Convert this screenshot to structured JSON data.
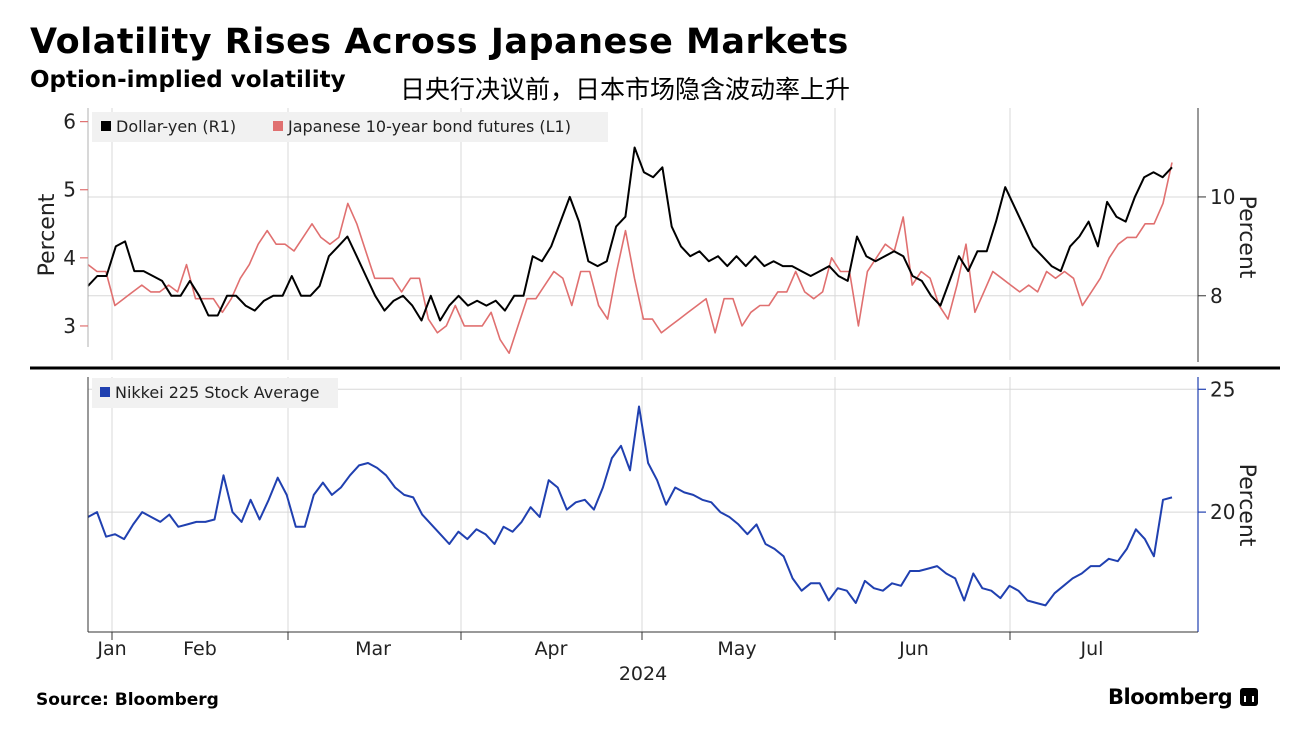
{
  "header": {
    "title": "Volatility Rises Across Japanese Markets",
    "subtitle": "Option-implied volatility",
    "subtitle_cn": "日央行决议前，日本市场隐含波动率上升"
  },
  "footer": {
    "source": "Source: Bloomberg",
    "brand": "Bloomberg"
  },
  "colors": {
    "dollar_yen": "#000000",
    "jgb": "#e07070",
    "nikkei": "#2040b0",
    "grid": "#d8d8d8"
  },
  "chart_data": [
    {
      "type": "line",
      "panel": "top",
      "legend_position": "top-left",
      "x": {
        "labels": [
          "Jan",
          "Feb",
          "Mar",
          "Apr",
          "May",
          "Jun",
          "Jul"
        ],
        "year_label": "2024"
      },
      "left_axis": {
        "label": "Percent",
        "ticks": [
          3,
          4,
          5,
          6
        ],
        "range": [
          2.5,
          6.2
        ]
      },
      "right_axis": {
        "label": "Percent",
        "ticks": [
          8,
          10
        ],
        "range": [
          6.7,
          11.8
        ]
      },
      "series": [
        {
          "name": "Dollar-yen (R1)",
          "axis": "right",
          "values": [
            8.2,
            8.4,
            8.4,
            9.0,
            9.1,
            8.5,
            8.5,
            8.4,
            8.3,
            8.0,
            8.0,
            8.3,
            8.0,
            7.6,
            7.6,
            8.0,
            8.0,
            7.8,
            7.7,
            7.9,
            8.0,
            8.0,
            8.4,
            8.0,
            8.0,
            8.2,
            8.8,
            9.0,
            9.2,
            8.8,
            8.4,
            8.0,
            7.7,
            7.9,
            8.0,
            7.8,
            7.5,
            8.0,
            7.5,
            7.8,
            8.0,
            7.8,
            7.9,
            7.8,
            7.9,
            7.7,
            8.0,
            8.0,
            8.8,
            8.7,
            9.0,
            9.5,
            10.0,
            9.5,
            8.7,
            8.6,
            8.7,
            9.4,
            9.6,
            11.0,
            10.5,
            10.4,
            10.6,
            9.4,
            9.0,
            8.8,
            8.9,
            8.7,
            8.8,
            8.6,
            8.8,
            8.6,
            8.8,
            8.6,
            8.7,
            8.6,
            8.6,
            8.5,
            8.4,
            8.5,
            8.6,
            8.4,
            8.3,
            9.2,
            8.8,
            8.7,
            8.8,
            8.9,
            8.8,
            8.4,
            8.3,
            8.0,
            7.8,
            8.3,
            8.8,
            8.5,
            8.9,
            8.9,
            9.5,
            10.2,
            9.8,
            9.4,
            9.0,
            8.8,
            8.6,
            8.5,
            9.0,
            9.2,
            9.5,
            9.0,
            9.9,
            9.6,
            9.5,
            10.0,
            10.4,
            10.5,
            10.4,
            10.6
          ]
        },
        {
          "name": "Japanese 10-year bond futures (L1)",
          "axis": "left",
          "values": [
            3.9,
            3.8,
            3.8,
            3.3,
            3.4,
            3.5,
            3.6,
            3.5,
            3.5,
            3.6,
            3.5,
            3.9,
            3.4,
            3.4,
            3.4,
            3.2,
            3.4,
            3.7,
            3.9,
            4.2,
            4.4,
            4.2,
            4.2,
            4.1,
            4.3,
            4.5,
            4.3,
            4.2,
            4.3,
            4.8,
            4.5,
            4.1,
            3.7,
            3.7,
            3.7,
            3.5,
            3.7,
            3.7,
            3.1,
            2.9,
            3.0,
            3.3,
            3.0,
            3.0,
            3.0,
            3.2,
            2.8,
            2.6,
            3.0,
            3.4,
            3.4,
            3.6,
            3.8,
            3.7,
            3.3,
            3.8,
            3.8,
            3.3,
            3.1,
            3.8,
            4.4,
            3.7,
            3.1,
            3.1,
            2.9,
            3.0,
            3.1,
            3.2,
            3.3,
            3.4,
            2.9,
            3.4,
            3.4,
            3.0,
            3.2,
            3.3,
            3.3,
            3.5,
            3.5,
            3.8,
            3.5,
            3.4,
            3.5,
            4.0,
            3.8,
            3.8,
            3.0,
            3.8,
            4.0,
            4.2,
            4.1,
            4.6,
            3.6,
            3.8,
            3.7,
            3.3,
            3.1,
            3.6,
            4.2,
            3.2,
            3.5,
            3.8,
            3.7,
            3.6,
            3.5,
            3.6,
            3.5,
            3.8,
            3.7,
            3.8,
            3.7,
            3.3,
            3.5,
            3.7,
            4.0,
            4.2,
            4.3,
            4.3,
            4.5,
            4.5,
            4.8,
            5.4
          ]
        }
      ]
    },
    {
      "type": "line",
      "panel": "bottom",
      "legend_position": "top-left",
      "right_axis": {
        "label": "Percent",
        "ticks": [
          20,
          25
        ],
        "range": [
          15.2,
          25.5
        ]
      },
      "series": [
        {
          "name": "Nikkei 225 Stock Average",
          "axis": "right",
          "values": [
            19.8,
            20.0,
            19.0,
            19.1,
            18.9,
            19.5,
            20.0,
            19.8,
            19.6,
            19.9,
            19.4,
            19.5,
            19.6,
            19.6,
            19.7,
            21.5,
            20.0,
            19.6,
            20.5,
            19.7,
            20.5,
            21.4,
            20.7,
            19.4,
            19.4,
            20.7,
            21.2,
            20.7,
            21.0,
            21.5,
            21.9,
            22.0,
            21.8,
            21.5,
            21.0,
            20.7,
            20.6,
            19.9,
            19.5,
            19.1,
            18.7,
            19.2,
            18.9,
            19.3,
            19.1,
            18.7,
            19.4,
            19.2,
            19.6,
            20.2,
            19.8,
            21.3,
            21.0,
            20.1,
            20.4,
            20.5,
            20.1,
            21.0,
            22.2,
            22.7,
            21.7,
            24.3,
            22.0,
            21.3,
            20.3,
            21.0,
            20.8,
            20.7,
            20.5,
            20.4,
            20.0,
            19.8,
            19.5,
            19.1,
            19.5,
            18.7,
            18.5,
            18.2,
            17.3,
            16.8,
            17.1,
            17.1,
            16.4,
            16.9,
            16.8,
            16.3,
            17.2,
            16.9,
            16.8,
            17.1,
            17.0,
            17.6,
            17.6,
            17.7,
            17.8,
            17.5,
            17.3,
            16.4,
            17.5,
            16.9,
            16.8,
            16.5,
            17.0,
            16.8,
            16.4,
            16.3,
            16.2,
            16.7,
            17.0,
            17.3,
            17.5,
            17.8,
            17.8,
            18.1,
            18.0,
            18.5,
            19.3,
            18.9,
            18.2,
            20.5,
            20.6
          ]
        }
      ]
    }
  ]
}
